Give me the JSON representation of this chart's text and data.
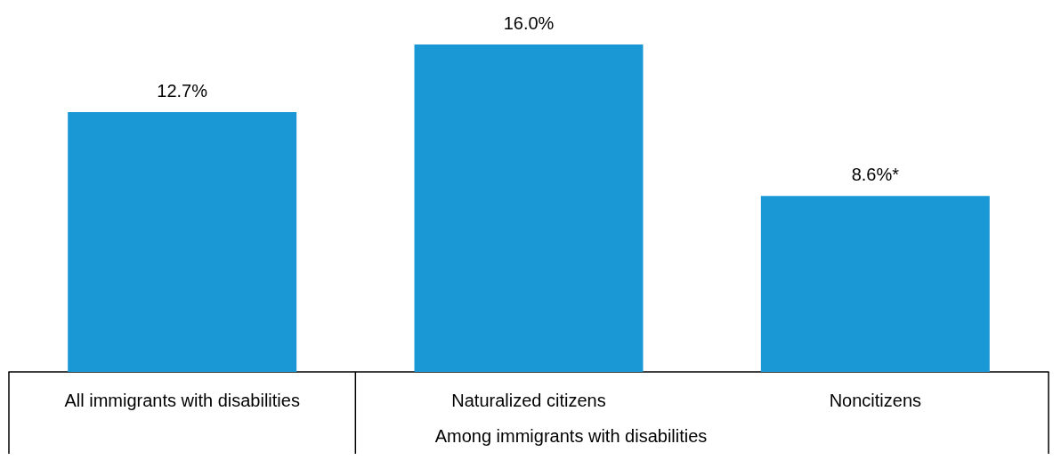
{
  "chart_data": {
    "type": "bar",
    "categories": [
      "All immigrants with disabilities",
      "Naturalized citizens",
      "Noncitizens"
    ],
    "values": [
      12.7,
      16.0,
      8.6
    ],
    "value_labels": [
      "12.7%",
      "16.0%",
      "8.6%*"
    ],
    "color": "#1a98d5",
    "annotations": [
      "Among immigrants with disabilities"
    ]
  }
}
